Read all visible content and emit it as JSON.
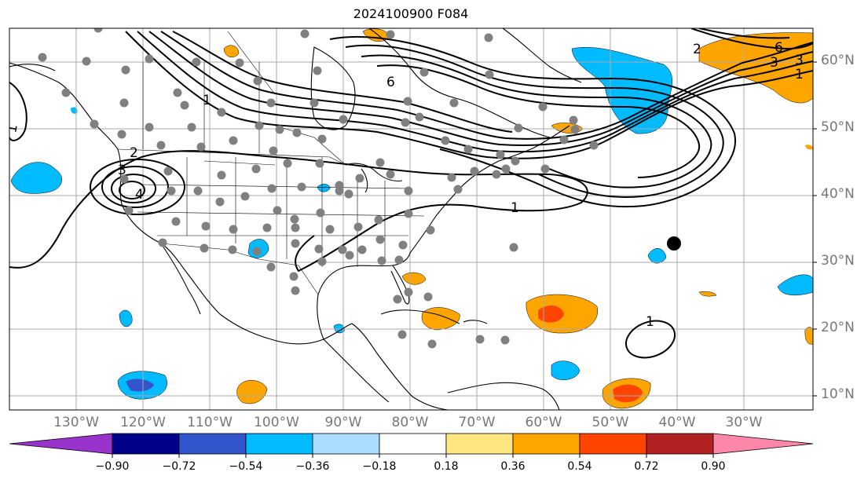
{
  "title": "2024100900 F084",
  "latitude_labels": [
    "60°N",
    "50°N",
    "40°N",
    "30°N",
    "20°N",
    "10°N"
  ],
  "longitude_labels": [
    "130°W",
    "120°W",
    "110°W",
    "100°W",
    "90°W",
    "80°W",
    "70°W",
    "60°W",
    "50°W",
    "40°W",
    "30°W"
  ],
  "contour_labels": [
    "1",
    "2",
    "3",
    "4",
    "6",
    "1",
    "1",
    "1",
    "1",
    "2",
    "3",
    "3",
    "6"
  ],
  "colorbar": {
    "ticks": [
      "−0.90",
      "−0.72",
      "−0.54",
      "−0.36",
      "−0.18",
      "0.18",
      "0.36",
      "0.54",
      "0.72",
      "0.90"
    ],
    "colors": [
      "#9933cc",
      "#000088",
      "#3355cc",
      "#00bbff",
      "#aaddff",
      "#ffffff",
      "#ffe680",
      "#ffa500",
      "#ff4400",
      "#b22222",
      "#ff88aa"
    ]
  },
  "colors": {
    "negative_fill": "#00bbff",
    "negative_strong_fill": "#3355cc",
    "positive_fill": "#ffa500",
    "positive_strong_fill": "#ff4400",
    "station_marker": "#808080",
    "highlight_marker": "#000000"
  }
}
